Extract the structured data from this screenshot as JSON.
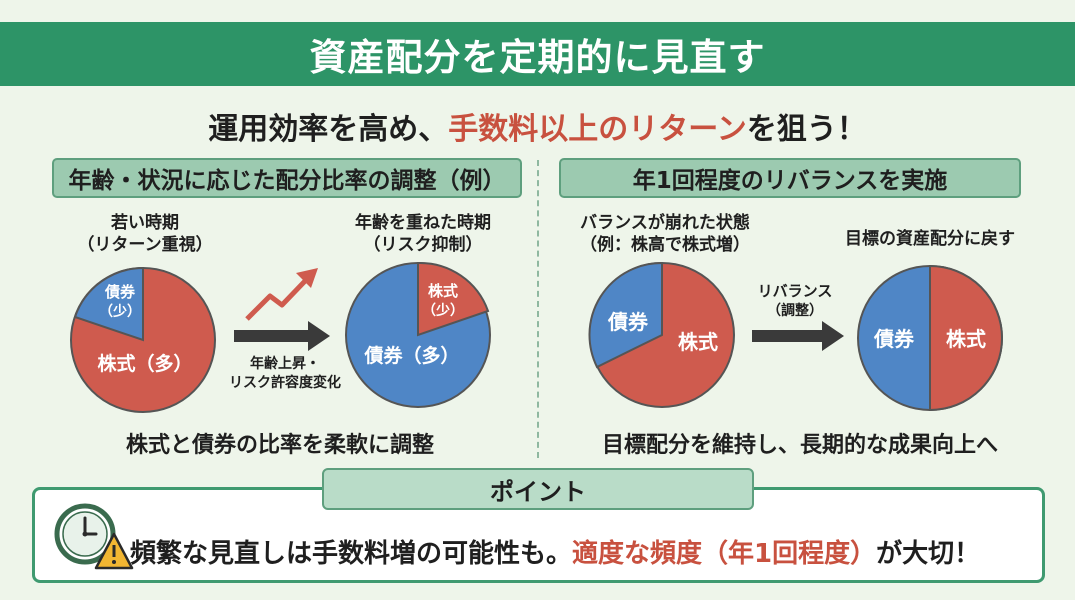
{
  "title": "資産配分を定期的に見直す",
  "subtitle": {
    "pre": "運用効率を高め、",
    "highlight": "手数料以上のリターン",
    "post": "を狙う！"
  },
  "left_section": {
    "header": "年齢・状況に応じた配分比率の調整（例）",
    "young": {
      "label_line1": "若い時期",
      "label_line2": "（リターン重視）",
      "bond_label_line1": "債券",
      "bond_label_line2": "（少）",
      "stock_label": "株式（多）"
    },
    "arrow_label_line1": "年齢上昇・",
    "arrow_label_line2": "リスク許容度変化",
    "older": {
      "label_line1": "年齢を重ねた時期",
      "label_line2": "（リスク抑制）",
      "stock_label_line1": "株式",
      "stock_label_line2": "（少）",
      "bond_label": "債券（多）"
    },
    "caption": "株式と債券の比率を柔軟に調整"
  },
  "right_section": {
    "header": "年1回程度のリバランスを実施",
    "unbalanced": {
      "label_line1": "バランスが崩れた状態",
      "label_line2": "（例：株高で株式増）",
      "bond_label": "債券",
      "stock_label": "株式"
    },
    "arrow_label_line1": "リバランス",
    "arrow_label_line2": "（調整）",
    "target": {
      "label": "目標の資産配分に戻す",
      "bond_label": "債券",
      "stock_label": "株式"
    },
    "caption": "目標配分を維持し、長期的な成果向上へ"
  },
  "point": {
    "tab": "ポイント",
    "text_pre": "頻繁な見直しは手数料増の可能性も。",
    "text_highlight": "適度な頻度（年1回程度）",
    "text_post": "が大切！",
    "icon": "clock-warning-icon"
  },
  "colors": {
    "banner": "#2d9467",
    "stock": "#cf5b4e",
    "bond": "#4f86c6",
    "accent_text": "#c8513f",
    "header_bg": "#9ccab0"
  }
}
